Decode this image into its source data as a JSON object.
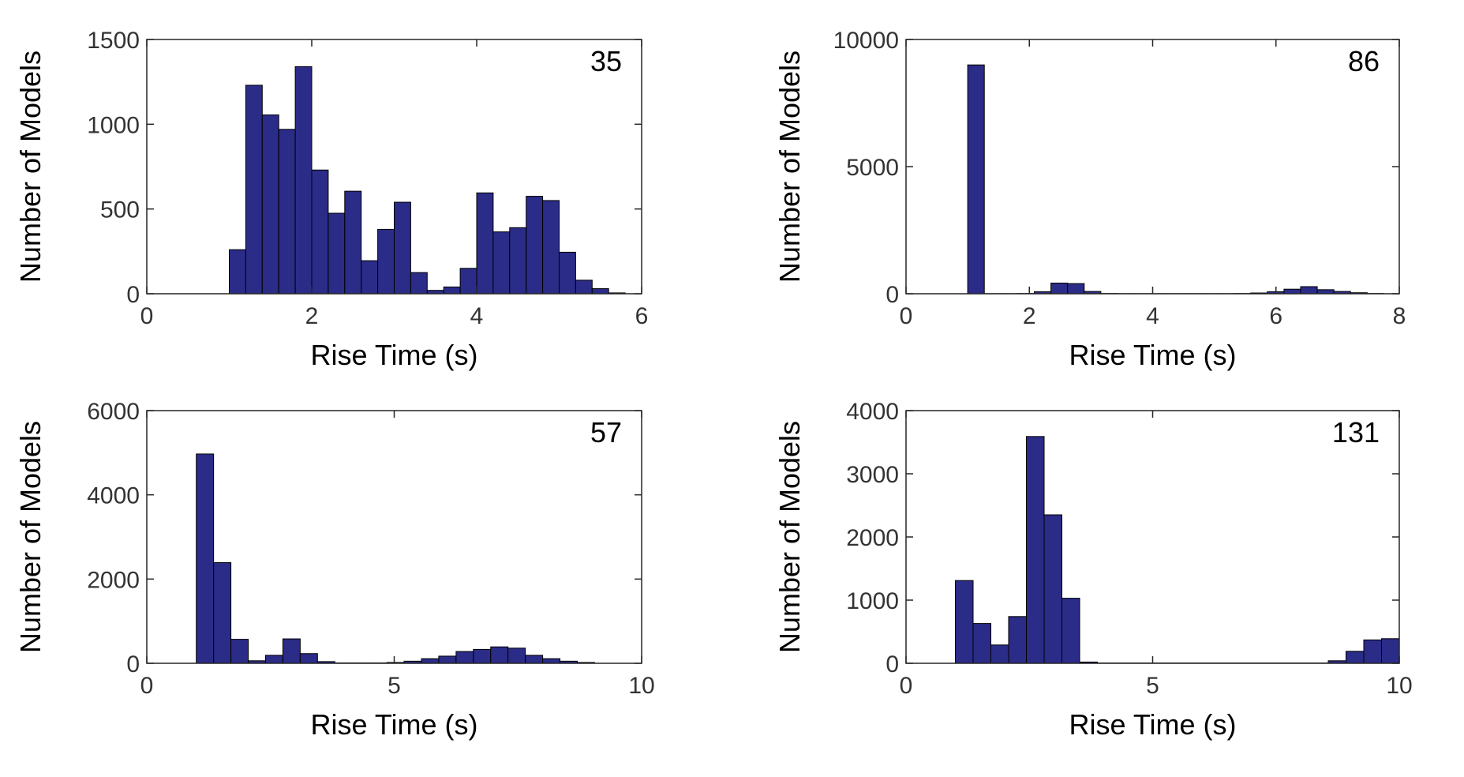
{
  "colors": {
    "bar_fill": "#2b2b88",
    "bar_edge": "#000000",
    "axes": "#262626",
    "tick_text": "#333333"
  },
  "chart_data": [
    {
      "type": "bar",
      "annotation": "35",
      "xlabel": "Rise Time (s)",
      "ylabel": "Number of Models",
      "xlim": [
        0,
        6
      ],
      "ylim": [
        0,
        1500
      ],
      "xticks": [
        0,
        2,
        4,
        6
      ],
      "yticks": [
        0,
        500,
        1000,
        1500
      ],
      "bin_width": 0.2,
      "bins_start": [
        1.0,
        1.2,
        1.4,
        1.6,
        1.8,
        2.0,
        2.2,
        2.4,
        2.6,
        2.8,
        3.0,
        3.2,
        3.4,
        3.6,
        3.8,
        4.0,
        4.2,
        4.4,
        4.6,
        4.8,
        5.0,
        5.2,
        5.4,
        5.6
      ],
      "values": [
        260,
        1230,
        1055,
        970,
        1340,
        730,
        475,
        605,
        195,
        380,
        540,
        125,
        20,
        40,
        150,
        595,
        365,
        390,
        575,
        550,
        245,
        80,
        30,
        5
      ],
      "grid": false
    },
    {
      "type": "bar",
      "annotation": "86",
      "xlabel": "Rise Time (s)",
      "ylabel": "Number of Models",
      "xlim": [
        0,
        8
      ],
      "ylim": [
        0,
        10000
      ],
      "xticks": [
        0,
        2,
        4,
        6,
        8
      ],
      "yticks": [
        0,
        5000,
        10000
      ],
      "bin_width": 0.27,
      "bins_start": [
        1.0,
        1.27,
        1.54,
        1.81,
        2.08,
        2.35,
        2.62,
        2.89,
        3.16,
        3.43,
        3.7,
        3.97,
        4.24,
        4.51,
        4.78,
        5.05,
        5.32,
        5.59,
        5.86,
        6.13,
        6.4,
        6.67,
        6.94,
        7.21,
        7.48
      ],
      "values": [
        9000,
        5,
        5,
        10,
        80,
        420,
        400,
        90,
        10,
        5,
        5,
        5,
        5,
        5,
        5,
        5,
        10,
        30,
        80,
        180,
        280,
        160,
        90,
        40,
        10
      ],
      "grid": false
    },
    {
      "type": "bar",
      "annotation": "57",
      "xlabel": "Rise Time (s)",
      "ylabel": "Number of Models",
      "xlim": [
        0,
        10
      ],
      "ylim": [
        0,
        6000
      ],
      "xticks": [
        0,
        5,
        10
      ],
      "yticks": [
        0,
        2000,
        4000,
        6000
      ],
      "bin_width": 0.35,
      "bins_start": [
        1.0,
        1.35,
        1.7,
        2.05,
        2.4,
        2.75,
        3.1,
        3.45,
        3.8,
        4.15,
        4.5,
        4.85,
        5.2,
        5.55,
        5.9,
        6.25,
        6.6,
        6.95,
        7.3,
        7.65,
        8.0,
        8.35,
        8.7
      ],
      "values": [
        4970,
        2390,
        570,
        60,
        190,
        580,
        230,
        40,
        10,
        10,
        10,
        20,
        50,
        110,
        170,
        280,
        330,
        390,
        360,
        190,
        110,
        50,
        20
      ],
      "grid": false
    },
    {
      "type": "bar",
      "annotation": "131",
      "xlabel": "Rise Time (s)",
      "ylabel": "Number of Models",
      "xlim": [
        0,
        10
      ],
      "ylim": [
        0,
        4000
      ],
      "xticks": [
        0,
        5,
        10
      ],
      "yticks": [
        0,
        1000,
        2000,
        3000,
        4000
      ],
      "bin_width": 0.36,
      "bins_start": [
        1.0,
        1.36,
        1.72,
        2.08,
        2.44,
        2.8,
        3.16,
        3.52,
        3.88,
        4.24,
        4.6,
        4.96,
        5.32,
        5.68,
        6.04,
        6.4,
        6.76,
        7.12,
        7.48,
        7.84,
        8.2,
        8.56,
        8.92,
        9.28,
        9.64
      ],
      "values": [
        1310,
        630,
        290,
        740,
        3590,
        2350,
        1030,
        20,
        5,
        5,
        5,
        5,
        5,
        5,
        5,
        5,
        5,
        5,
        5,
        5,
        5,
        40,
        190,
        370,
        390
      ],
      "grid": false
    }
  ]
}
